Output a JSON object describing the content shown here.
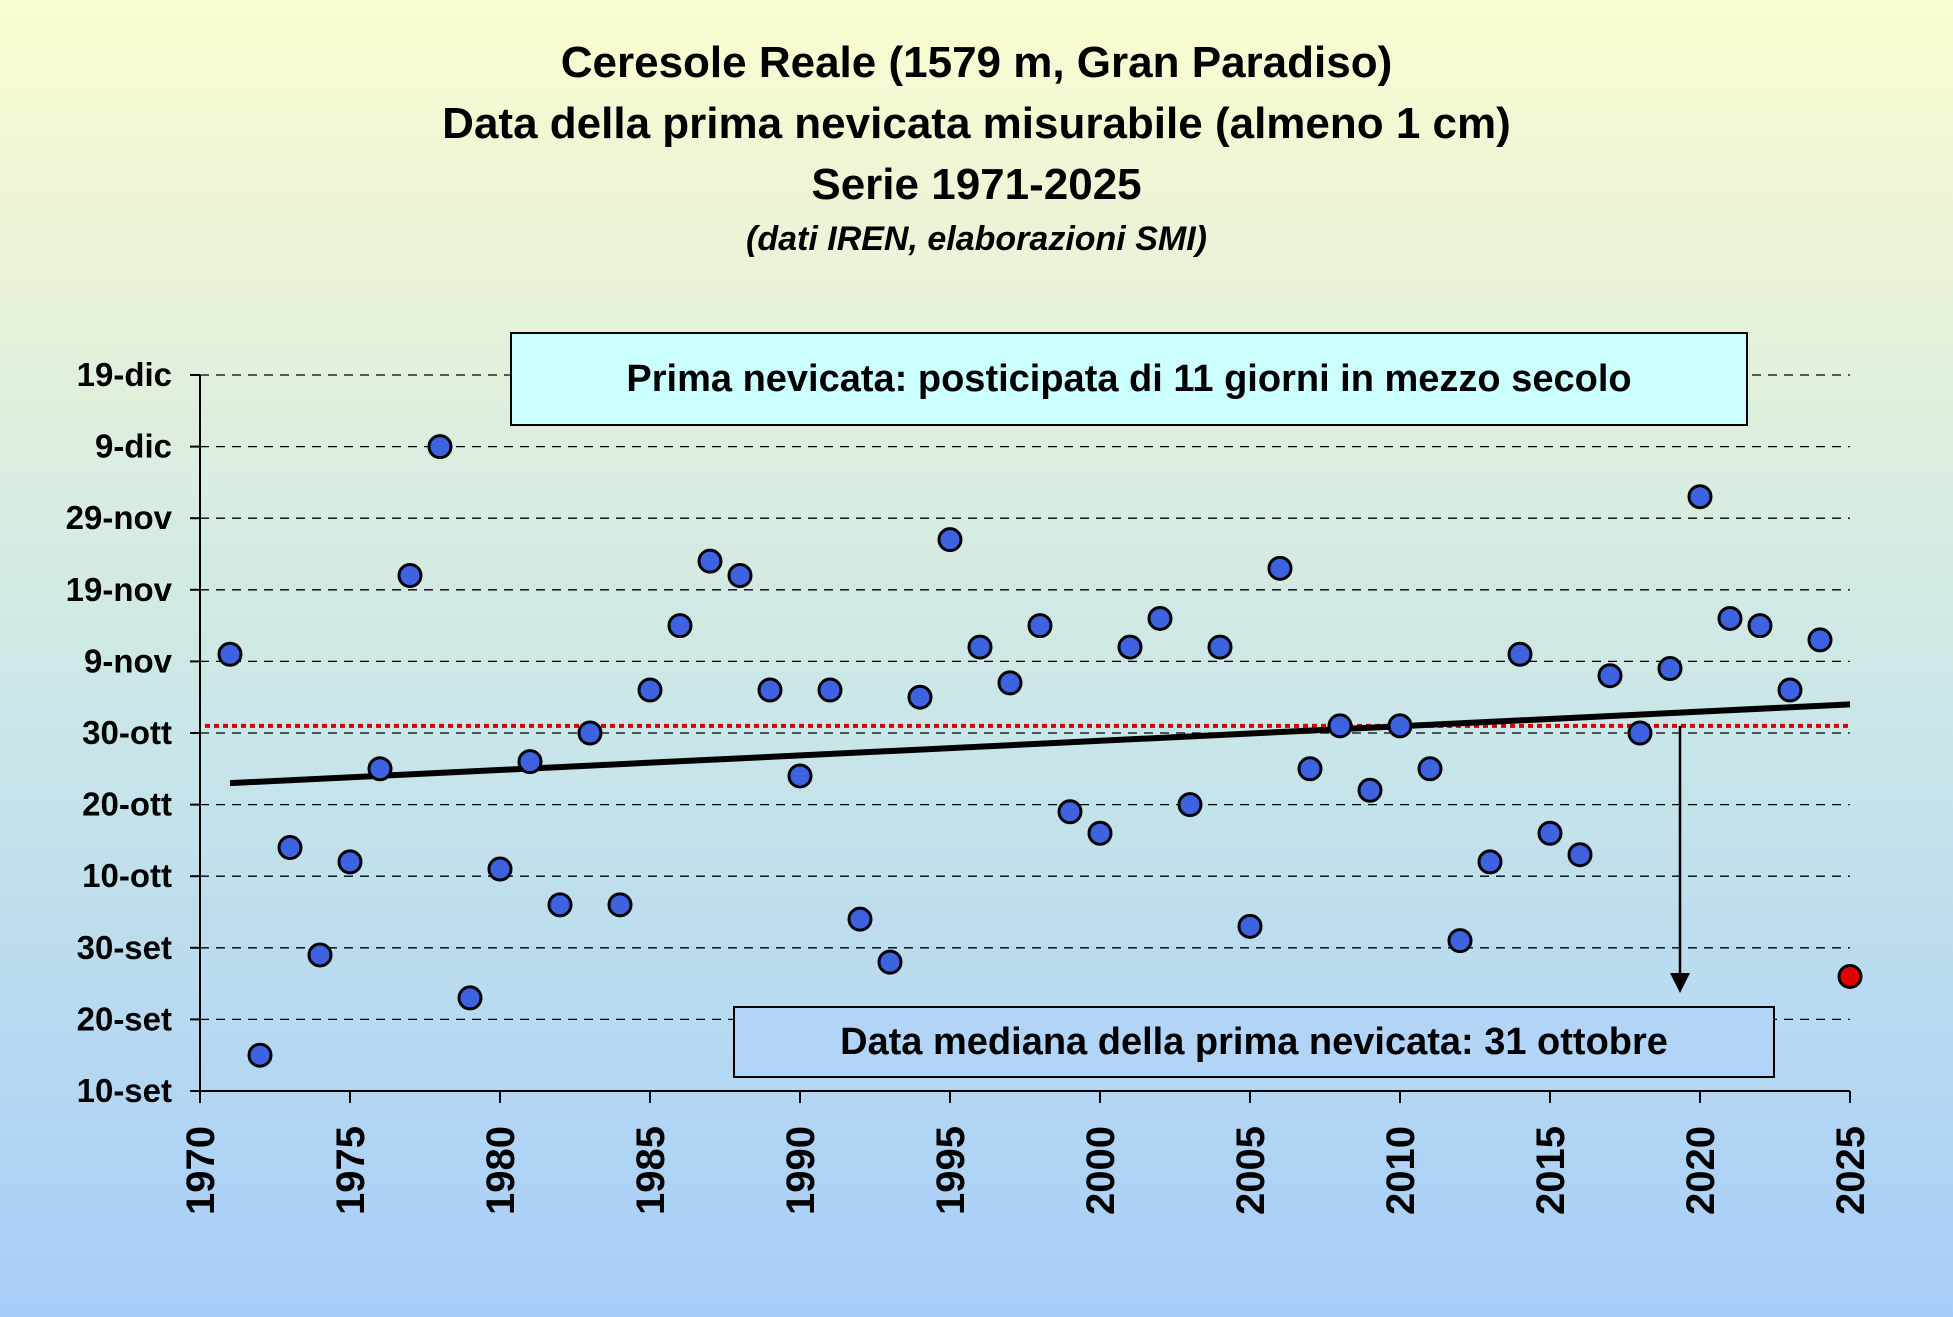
{
  "header": {
    "title_lines": [
      "Ceresole Reale (1579 m, Gran Paradiso)",
      "Data della prima nevicata misurabile (almeno 1 cm)",
      "Serie 1971-2025"
    ],
    "source": "(dati IREN, elaborazioni SMI)"
  },
  "annotations": {
    "trend_text": "Prima nevicata: posticipata di 11 giorni in mezzo secolo",
    "median_text": "Data mediana della prima nevicata: 31 ottobre"
  },
  "colors": {
    "point_fill": "#3e63e0",
    "last_point_fill": "#e00000",
    "trend_line": "#000000",
    "median_line": "#d40000"
  },
  "chart_data": {
    "type": "scatter",
    "xlabel": "",
    "ylabel": "",
    "xlim": [
      1970,
      2025
    ],
    "ylim": [
      "10-set",
      "19-dic"
    ],
    "x_ticks": [
      1970,
      1975,
      1980,
      1985,
      1990,
      1995,
      2000,
      2005,
      2010,
      2015,
      2020,
      2025
    ],
    "y_ticks": [
      "10-set",
      "20-set",
      "30-set",
      "10-ott",
      "20-ott",
      "30-ott",
      "9-nov",
      "19-nov",
      "29-nov",
      "9-dic",
      "19-dic"
    ],
    "grid": "horizontal dashed",
    "series": [
      {
        "x": [
          1971,
          1972,
          1973,
          1974,
          1975,
          1976,
          1977,
          1978,
          1979,
          1980,
          1981,
          1982,
          1983,
          1984,
          1985,
          1986,
          1987,
          1988,
          1989,
          1990,
          1991,
          1992,
          1993,
          1994,
          1995,
          1996,
          1997,
          1998,
          1999,
          2000,
          2001,
          2002,
          2003,
          2004,
          2005,
          2006,
          2007,
          2008,
          2009,
          2010,
          2011,
          2012,
          2013,
          2014,
          2015,
          2016,
          2017,
          2018,
          2019,
          2020,
          2021,
          2022,
          2023,
          2024
        ],
        "y": [
          "10-nov",
          "15-set",
          "14-ott",
          "29-set",
          "12-ott",
          "25-ott",
          "21-nov",
          "9-dic",
          "23-set",
          "11-ott",
          "26-ott",
          "6-ott",
          "30-ott",
          "6-ott",
          "5-nov",
          "14-nov",
          "23-nov",
          "21-nov",
          "5-nov",
          "24-ott",
          "5-nov",
          "4-ott",
          "28-set",
          "4-nov",
          "26-nov",
          "11-nov",
          "6-nov",
          "14-nov",
          "19-ott",
          "16-ott",
          "11-nov",
          "15-nov",
          "20-ott",
          "11-nov",
          "3-ott",
          "22-nov",
          "25-ott",
          "31-ott",
          "22-ott",
          "31-ott",
          "25-ott",
          "1-ott",
          "12-ott",
          "10-nov",
          "16-ott",
          "13-ott",
          "7-nov",
          "30-ott",
          "8-nov",
          "2-dic",
          "15-nov",
          "14-nov",
          "5-nov",
          "12-nov"
        ]
      },
      {
        "x": [
          2025
        ],
        "y": [
          "26-set"
        ],
        "highlight": true
      }
    ],
    "trend_line": {
      "x": [
        1971,
        2025
      ],
      "y": [
        "23-ott",
        "3-nov"
      ]
    },
    "median_line": {
      "y": "31-ott"
    }
  }
}
